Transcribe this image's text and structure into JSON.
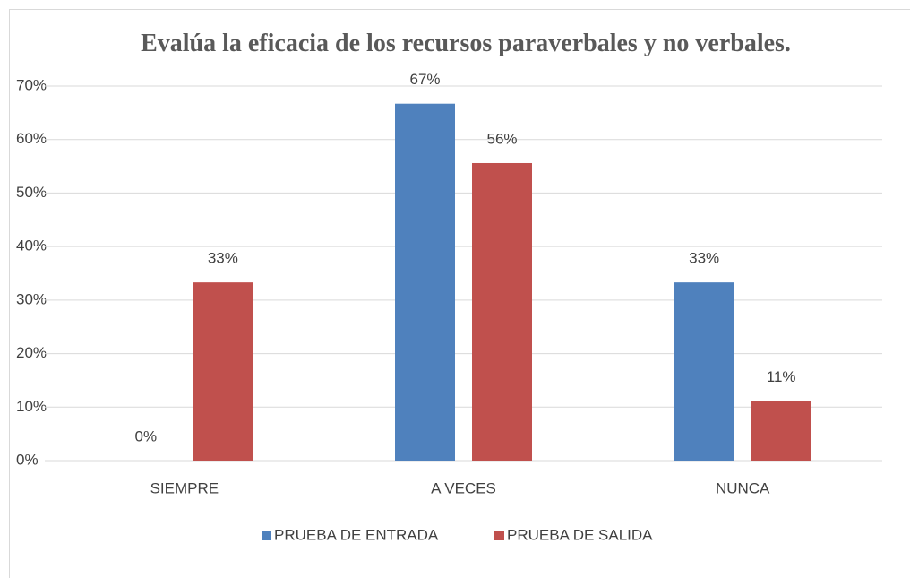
{
  "chart_data": {
    "type": "bar",
    "title": "Evalúa la eficacia de los recursos paraverbales y no verbales.",
    "categories": [
      "SIEMPRE",
      "A VECES",
      "NUNCA"
    ],
    "series": [
      {
        "name": "PRUEBA DE ENTRADA",
        "color": "#4f81bd",
        "values": [
          0,
          66.7,
          33.3
        ],
        "value_labels": [
          "0%",
          "67%",
          "33%"
        ]
      },
      {
        "name": "PRUEBA DE SALIDA",
        "color": "#c0504d",
        "values": [
          33.3,
          55.6,
          11.1
        ],
        "value_labels": [
          "33%",
          "56%",
          "11%"
        ]
      }
    ],
    "ylim": [
      0,
      70
    ],
    "yticks": [
      {
        "value": 0,
        "label": "0%"
      },
      {
        "value": 10,
        "label": "10%"
      },
      {
        "value": 20,
        "label": "20%"
      },
      {
        "value": 30,
        "label": "30%"
      },
      {
        "value": 40,
        "label": "40%"
      },
      {
        "value": 50,
        "label": "50%"
      },
      {
        "value": 60,
        "label": "60%"
      },
      {
        "value": 70,
        "label": "70%"
      }
    ],
    "grid": true,
    "legend": "bottom"
  }
}
